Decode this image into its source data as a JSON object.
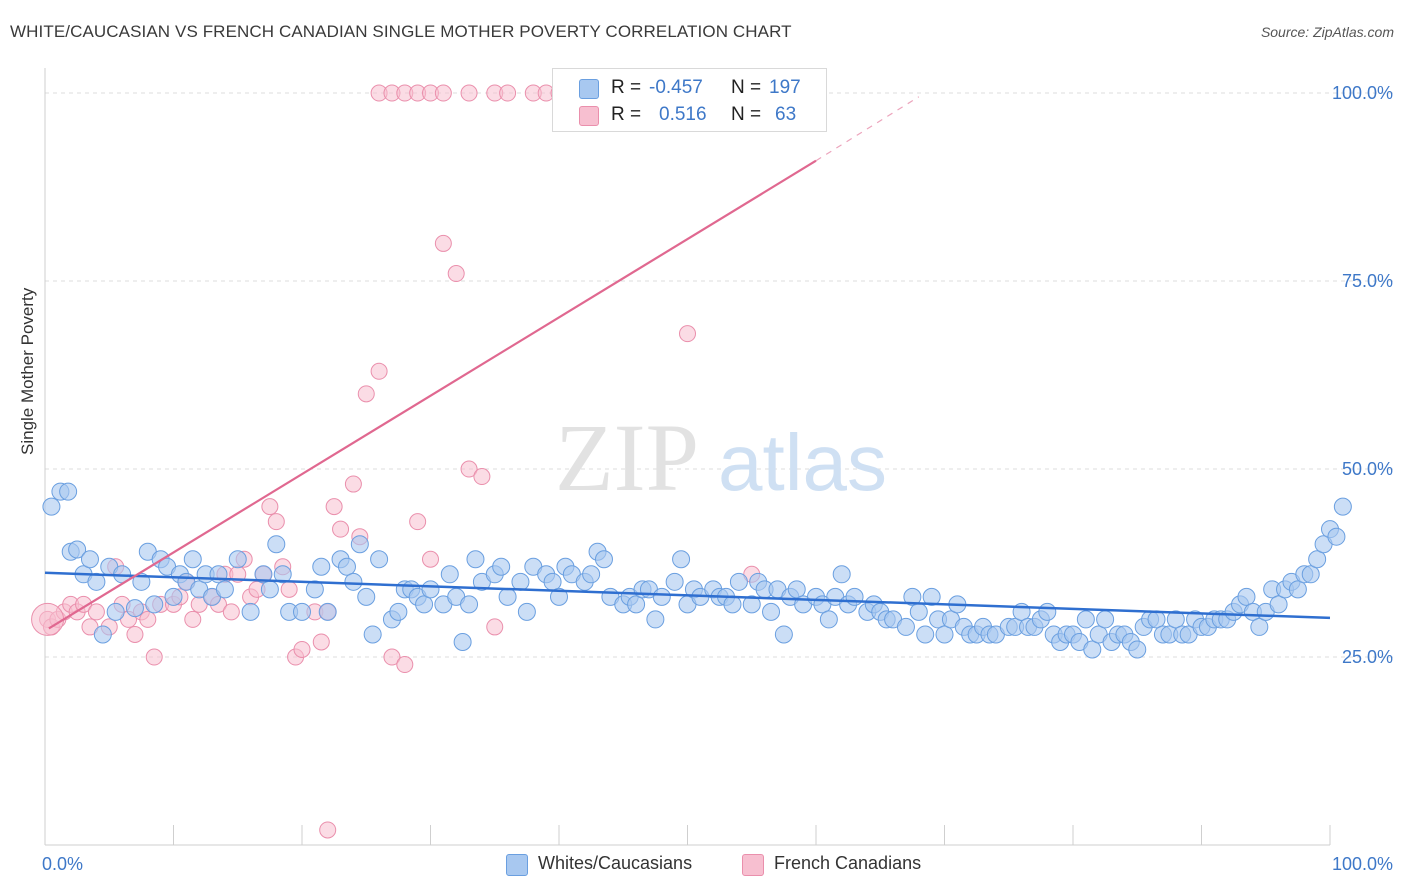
{
  "title": "WHITE/CAUCASIAN VS FRENCH CANADIAN SINGLE MOTHER POVERTY CORRELATION CHART",
  "source": "Source: ZipAtlas.com",
  "watermark": {
    "zip": "ZIP",
    "atlas": "atlas"
  },
  "colors": {
    "blue_fill": "#a8c8f0",
    "blue_stroke": "#6a9fe0",
    "blue_line": "#2f6fd0",
    "pink_fill": "#f7bfd0",
    "pink_stroke": "#ea8fac",
    "pink_line": "#e06890",
    "axis_text": "#3e78c8",
    "grid": "#dcdcdc"
  },
  "legend": {
    "rows": [
      {
        "r_label": "R =",
        "r_value": "-0.457",
        "n_label": "N =",
        "n_value": "197",
        "series": "blue"
      },
      {
        "r_label": "R =",
        "r_value": "0.516",
        "n_label": "N =",
        "n_value": "63",
        "series": "pink"
      }
    ]
  },
  "bottom_legend": [
    {
      "label": "Whites/Caucasians",
      "series": "blue"
    },
    {
      "label": "French Canadians",
      "series": "pink"
    }
  ],
  "chart_data": {
    "type": "scatter",
    "ylabel": "Single Mother Poverty",
    "xlim": [
      0,
      100
    ],
    "ylim": [
      0,
      102
    ],
    "x_tick_labels": [
      {
        "value": 0,
        "label": "0.0%"
      },
      {
        "value": 100,
        "label": "100.0%"
      }
    ],
    "y_tick_labels": [
      {
        "value": 25,
        "label": "25.0%"
      },
      {
        "value": 50,
        "label": "50.0%"
      },
      {
        "value": 75,
        "label": "75.0%"
      },
      {
        "value": 100,
        "label": "100.0%"
      }
    ],
    "grid": "horizontal dashed",
    "series": [
      {
        "name": "Whites/Caucasians",
        "color": "blue",
        "trend": {
          "x": [
            0,
            100
          ],
          "y": [
            36.2,
            30.2
          ]
        },
        "points": [
          [
            0.5,
            45
          ],
          [
            1.2,
            47
          ],
          [
            1.8,
            47
          ],
          [
            2,
            39
          ],
          [
            2.5,
            39.3
          ],
          [
            3,
            36
          ],
          [
            3.5,
            38
          ],
          [
            4,
            35
          ],
          [
            4.5,
            28
          ],
          [
            5,
            37
          ],
          [
            5.5,
            31
          ],
          [
            6,
            36
          ],
          [
            7,
            31.5
          ],
          [
            7.5,
            35
          ],
          [
            8,
            39
          ],
          [
            8.5,
            32
          ],
          [
            9,
            38
          ],
          [
            9.5,
            37
          ],
          [
            10,
            33
          ],
          [
            10.5,
            36
          ],
          [
            11,
            35
          ],
          [
            11.5,
            38
          ],
          [
            12,
            34
          ],
          [
            12.5,
            36
          ],
          [
            13,
            33
          ],
          [
            13.5,
            36
          ],
          [
            14,
            34
          ],
          [
            15,
            38
          ],
          [
            16,
            31
          ],
          [
            17,
            36
          ],
          [
            17.5,
            34
          ],
          [
            18,
            40
          ],
          [
            18.5,
            36
          ],
          [
            19,
            31
          ],
          [
            20,
            31
          ],
          [
            21,
            34
          ],
          [
            21.5,
            37
          ],
          [
            22,
            31
          ],
          [
            23,
            38
          ],
          [
            23.5,
            37
          ],
          [
            24,
            35
          ],
          [
            24.5,
            40
          ],
          [
            25,
            33
          ],
          [
            25.5,
            28
          ],
          [
            26,
            38
          ],
          [
            27,
            30
          ],
          [
            27.5,
            31
          ],
          [
            28,
            34
          ],
          [
            28.5,
            34
          ],
          [
            29,
            33
          ],
          [
            29.5,
            32
          ],
          [
            30,
            34
          ],
          [
            31,
            32
          ],
          [
            31.5,
            36
          ],
          [
            32,
            33
          ],
          [
            32.5,
            27
          ],
          [
            33,
            32
          ],
          [
            33.5,
            38
          ],
          [
            34,
            35
          ],
          [
            35,
            36
          ],
          [
            35.5,
            37
          ],
          [
            36,
            33
          ],
          [
            37,
            35
          ],
          [
            37.5,
            31
          ],
          [
            38,
            37
          ],
          [
            39,
            36
          ],
          [
            39.5,
            35
          ],
          [
            40,
            33
          ],
          [
            40.5,
            37
          ],
          [
            41,
            36
          ],
          [
            42,
            35
          ],
          [
            42.5,
            36
          ],
          [
            43,
            39
          ],
          [
            43.5,
            38
          ],
          [
            44,
            33
          ],
          [
            45,
            32
          ],
          [
            45.5,
            33
          ],
          [
            46,
            32
          ],
          [
            46.5,
            34
          ],
          [
            47,
            34
          ],
          [
            47.5,
            30
          ],
          [
            48,
            33
          ],
          [
            49,
            35
          ],
          [
            49.5,
            38
          ],
          [
            50,
            32
          ],
          [
            50.5,
            34
          ],
          [
            51,
            33
          ],
          [
            52,
            34
          ],
          [
            52.5,
            33
          ],
          [
            53,
            33
          ],
          [
            53.5,
            32
          ],
          [
            54,
            35
          ],
          [
            55,
            32
          ],
          [
            55.5,
            35
          ],
          [
            56,
            34
          ],
          [
            56.5,
            31
          ],
          [
            57,
            34
          ],
          [
            57.5,
            28
          ],
          [
            58,
            33
          ],
          [
            58.5,
            34
          ],
          [
            59,
            32
          ],
          [
            60,
            33
          ],
          [
            60.5,
            32
          ],
          [
            61,
            30
          ],
          [
            61.5,
            33
          ],
          [
            62,
            36
          ],
          [
            62.5,
            32
          ],
          [
            63,
            33
          ],
          [
            64,
            31
          ],
          [
            64.5,
            32
          ],
          [
            65,
            31
          ],
          [
            65.5,
            30
          ],
          [
            66,
            30
          ],
          [
            67,
            29
          ],
          [
            67.5,
            33
          ],
          [
            68,
            31
          ],
          [
            68.5,
            28
          ],
          [
            69,
            33
          ],
          [
            69.5,
            30
          ],
          [
            70,
            28
          ],
          [
            70.5,
            30
          ],
          [
            71,
            32
          ],
          [
            71.5,
            29
          ],
          [
            72,
            28
          ],
          [
            72.5,
            28
          ],
          [
            73,
            29
          ],
          [
            73.5,
            28
          ],
          [
            74,
            28
          ],
          [
            75,
            29
          ],
          [
            75.5,
            29
          ],
          [
            76,
            31
          ],
          [
            76.5,
            29
          ],
          [
            77,
            29
          ],
          [
            77.5,
            30
          ],
          [
            78,
            31
          ],
          [
            78.5,
            28
          ],
          [
            79,
            27
          ],
          [
            79.5,
            28
          ],
          [
            80,
            28
          ],
          [
            80.5,
            27
          ],
          [
            81,
            30
          ],
          [
            81.5,
            26
          ],
          [
            82,
            28
          ],
          [
            82.5,
            30
          ],
          [
            83,
            27
          ],
          [
            83.5,
            28
          ],
          [
            84,
            28
          ],
          [
            84.5,
            27
          ],
          [
            85,
            26
          ],
          [
            85.5,
            29
          ],
          [
            86,
            30
          ],
          [
            86.5,
            30
          ],
          [
            87,
            28
          ],
          [
            87.5,
            28
          ],
          [
            88,
            30
          ],
          [
            88.5,
            28
          ],
          [
            89,
            28
          ],
          [
            89.5,
            30
          ],
          [
            90,
            29
          ],
          [
            90.5,
            29
          ],
          [
            91,
            30
          ],
          [
            91.5,
            30
          ],
          [
            92,
            30
          ],
          [
            92.5,
            31
          ],
          [
            93,
            32
          ],
          [
            93.5,
            33
          ],
          [
            94,
            31
          ],
          [
            94.5,
            29
          ],
          [
            95,
            31
          ],
          [
            95.5,
            34
          ],
          [
            96,
            32
          ],
          [
            96.5,
            34
          ],
          [
            97,
            35
          ],
          [
            97.5,
            34
          ],
          [
            98,
            36
          ],
          [
            98.5,
            36
          ],
          [
            99,
            38
          ],
          [
            99.5,
            40
          ],
          [
            100,
            42
          ],
          [
            100.5,
            41
          ],
          [
            101,
            45
          ]
        ]
      },
      {
        "name": "French Canadians",
        "color": "pink",
        "trend": {
          "x": [
            0.3,
            60
          ],
          "y": [
            28.8,
            91
          ]
        },
        "trend_dashed": {
          "x": [
            60,
            68
          ],
          "y": [
            91,
            99.5
          ]
        },
        "points": [
          [
            0.2,
            30
          ],
          [
            0.5,
            29
          ],
          [
            1,
            30
          ],
          [
            1.5,
            31
          ],
          [
            2,
            32
          ],
          [
            2.5,
            31
          ],
          [
            3,
            32
          ],
          [
            3.5,
            29
          ],
          [
            4,
            31
          ],
          [
            5,
            29
          ],
          [
            5.5,
            37
          ],
          [
            6,
            32
          ],
          [
            6.5,
            30
          ],
          [
            7,
            28
          ],
          [
            7.5,
            31
          ],
          [
            8,
            30
          ],
          [
            8.5,
            25
          ],
          [
            9,
            32
          ],
          [
            10,
            32
          ],
          [
            10.5,
            33
          ],
          [
            11,
            35
          ],
          [
            11.5,
            30
          ],
          [
            12,
            32
          ],
          [
            13,
            33
          ],
          [
            13.5,
            32
          ],
          [
            14,
            36
          ],
          [
            14.5,
            31
          ],
          [
            15,
            36
          ],
          [
            15.5,
            38
          ],
          [
            16,
            33
          ],
          [
            16.5,
            34
          ],
          [
            17,
            36
          ],
          [
            17.5,
            45
          ],
          [
            18,
            43
          ],
          [
            18.5,
            37
          ],
          [
            19,
            34
          ],
          [
            19.5,
            25
          ],
          [
            20,
            26
          ],
          [
            21,
            31
          ],
          [
            21.5,
            27
          ],
          [
            22,
            31
          ],
          [
            22.5,
            45
          ],
          [
            23,
            42
          ],
          [
            24,
            48
          ],
          [
            24.5,
            41
          ],
          [
            25,
            60
          ],
          [
            26,
            63
          ],
          [
            27,
            25
          ],
          [
            28,
            24
          ],
          [
            29,
            43
          ],
          [
            30,
            38
          ],
          [
            31,
            80
          ],
          [
            32,
            76
          ],
          [
            33,
            50
          ],
          [
            34,
            49
          ],
          [
            35,
            29
          ],
          [
            26,
            100
          ],
          [
            27,
            100
          ],
          [
            28,
            100
          ],
          [
            29,
            100
          ],
          [
            30,
            100
          ],
          [
            31,
            100
          ],
          [
            33,
            100
          ],
          [
            35,
            100
          ],
          [
            36,
            100
          ],
          [
            38,
            100
          ],
          [
            39,
            100
          ],
          [
            40,
            100
          ],
          [
            42,
            100
          ],
          [
            44,
            100
          ],
          [
            46,
            100
          ],
          [
            50,
            68
          ],
          [
            55,
            36
          ],
          [
            22,
            2
          ]
        ]
      }
    ]
  }
}
